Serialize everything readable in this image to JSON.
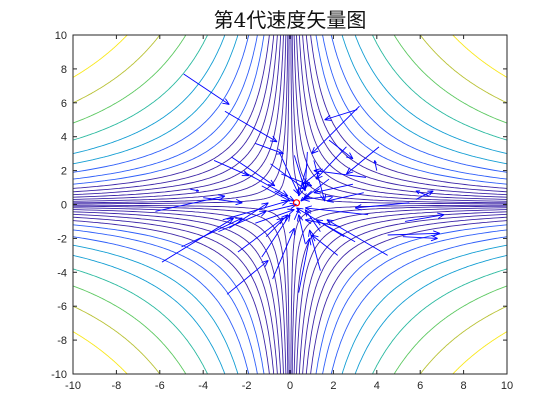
{
  "chart_data": {
    "type": "quiver",
    "title": "第4代速度矢量图",
    "xlim": [
      -10,
      10
    ],
    "ylim": [
      -10,
      10
    ],
    "xticks": [
      -10,
      -8,
      -6,
      -4,
      -2,
      0,
      2,
      4,
      6,
      8,
      10
    ],
    "yticks": [
      -10,
      -8,
      -6,
      -4,
      -2,
      0,
      2,
      4,
      6,
      8,
      10
    ],
    "grid": false,
    "background_contours": {
      "function": "x*y",
      "levels": [
        -75,
        -60,
        -48,
        -38,
        -30,
        -24,
        -19,
        -15,
        -12,
        -9.5,
        -7.5,
        -5.8,
        -4.3,
        -3,
        -1.9,
        -1,
        -0.4,
        0.4,
        1,
        1.9,
        3,
        4.3,
        5.8,
        7.5,
        9.5,
        12,
        15,
        19,
        24,
        30,
        38,
        48,
        60,
        75
      ],
      "colormap": [
        "#3d26a8",
        "#2f5ff9",
        "#139ed3",
        "#2cbaa0",
        "#5ec962",
        "#b9c236",
        "#f0b429",
        "#f9e81e"
      ]
    },
    "best_point": {
      "x": 0.3,
      "y": 0.1,
      "color": "#ff0000"
    },
    "arrow_color": "#0000ff",
    "vectors": [
      {
        "x": -4.9,
        "y": 7.7,
        "u": 2.1,
        "v": -1.8
      },
      {
        "x": -3.0,
        "y": 5.5,
        "u": 2.4,
        "v": -1.8
      },
      {
        "x": 3.2,
        "y": 5.8,
        "u": -2.2,
        "v": -2.8
      },
      {
        "x": 3.1,
        "y": 5.6,
        "u": -1.5,
        "v": -0.6
      },
      {
        "x": 1.8,
        "y": 3.8,
        "u": 1.1,
        "v": -1.1
      },
      {
        "x": -1.6,
        "y": 3.6,
        "u": 1.3,
        "v": -0.6
      },
      {
        "x": -2.7,
        "y": 2.8,
        "u": 2.0,
        "v": -1.7
      },
      {
        "x": -3.5,
        "y": 2.6,
        "u": 1.6,
        "v": -0.9
      },
      {
        "x": 4.1,
        "y": 3.4,
        "u": -1.5,
        "v": -1.6
      },
      {
        "x": 2.6,
        "y": 3.4,
        "u": -1.4,
        "v": -1.9
      },
      {
        "x": 0.2,
        "y": 2.9,
        "u": 0.5,
        "v": -2.1
      },
      {
        "x": -0.9,
        "y": 2.4,
        "u": 1.6,
        "v": -1.5
      },
      {
        "x": -0.4,
        "y": 1.8,
        "u": 1.4,
        "v": -0.7
      },
      {
        "x": -2.1,
        "y": 1.9,
        "u": 2.0,
        "v": -1.4
      },
      {
        "x": -1.3,
        "y": 1.1,
        "u": 1.3,
        "v": -0.9
      },
      {
        "x": 3.5,
        "y": 1.6,
        "u": -2.4,
        "v": 0.4
      },
      {
        "x": 2.9,
        "y": 1.2,
        "u": -1.8,
        "v": -0.5
      },
      {
        "x": 1.8,
        "y": 1.5,
        "u": -1.2,
        "v": -1.2
      },
      {
        "x": 1.5,
        "y": 2.1,
        "u": -0.9,
        "v": -0.9
      },
      {
        "x": 0.8,
        "y": 2.4,
        "u": -0.4,
        "v": -1.9
      },
      {
        "x": -5.9,
        "y": -3.4,
        "u": 3.3,
        "v": 2.6
      },
      {
        "x": -5.0,
        "y": -2.5,
        "u": 2.8,
        "v": 1.7
      },
      {
        "x": -6.2,
        "y": -0.4,
        "u": 3.2,
        "v": 0.9
      },
      {
        "x": -3.1,
        "y": -0.9,
        "u": 3.0,
        "v": 1.1
      },
      {
        "x": -1.6,
        "y": -1.1,
        "u": 1.8,
        "v": 0.8
      },
      {
        "x": -1.0,
        "y": -0.4,
        "u": 1.3,
        "v": 0.4
      },
      {
        "x": -4.0,
        "y": 0.4,
        "u": 1.8,
        "v": -0.3
      },
      {
        "x": -3.3,
        "y": -1.6,
        "u": 2.2,
        "v": 1.2
      },
      {
        "x": -2.4,
        "y": -2.8,
        "u": 2.1,
        "v": 2.0
      },
      {
        "x": -1.1,
        "y": -1.9,
        "u": 1.0,
        "v": 1.3
      },
      {
        "x": -2.9,
        "y": -5.3,
        "u": 1.9,
        "v": 2.0
      },
      {
        "x": -0.8,
        "y": -4.4,
        "u": 1.0,
        "v": 3.0
      },
      {
        "x": 1.4,
        "y": -3.9,
        "u": -0.5,
        "v": 2.4
      },
      {
        "x": 2.2,
        "y": -3.0,
        "u": -1.2,
        "v": 1.2
      },
      {
        "x": 3.0,
        "y": -2.2,
        "u": -1.8,
        "v": 1.3
      },
      {
        "x": 4.5,
        "y": -3.0,
        "u": -2.8,
        "v": 2.1
      },
      {
        "x": 2.3,
        "y": -1.3,
        "u": -1.6,
        "v": 0.4
      },
      {
        "x": 1.4,
        "y": -1.6,
        "u": -0.7,
        "v": 1.3
      },
      {
        "x": 0.7,
        "y": -2.3,
        "u": -0.3,
        "v": 1.7
      },
      {
        "x": 0.2,
        "y": -0.9,
        "u": 0.2,
        "v": 0.6
      },
      {
        "x": 5.2,
        "y": -1.9,
        "u": 1.6,
        "v": -0.1
      },
      {
        "x": 4.5,
        "y": -1.8,
        "u": 2.4,
        "v": 0.1
      },
      {
        "x": 5.3,
        "y": -1.0,
        "u": 1.8,
        "v": 0.4
      },
      {
        "x": 5.8,
        "y": 0.3,
        "u": 0.8,
        "v": 0.5
      },
      {
        "x": 6.4,
        "y": 0.5,
        "u": -0.6,
        "v": 0.3
      },
      {
        "x": 5.5,
        "y": 0.1,
        "u": -2.5,
        "v": -0.3
      },
      {
        "x": 3.4,
        "y": 0.7,
        "u": -1.7,
        "v": -0.5
      },
      {
        "x": 2.0,
        "y": 0.5,
        "u": -1.4,
        "v": -0.2
      },
      {
        "x": 1.0,
        "y": 0.8,
        "u": -0.5,
        "v": -0.6
      },
      {
        "x": -0.7,
        "y": 0.8,
        "u": 0.9,
        "v": -0.6
      },
      {
        "x": 0.8,
        "y": 3.1,
        "u": -0.1,
        "v": -2.2
      },
      {
        "x": 4.0,
        "y": 2.0,
        "u": -0.1,
        "v": 0.6
      },
      {
        "x": -4.6,
        "y": 0.9,
        "u": 0.4,
        "v": -0.1
      },
      {
        "x": -2.8,
        "y": -1.4,
        "u": 1.8,
        "v": 1.5
      },
      {
        "x": 0.4,
        "y": -5.2,
        "u": 0.5,
        "v": 3.2
      },
      {
        "x": -1.3,
        "y": -3.1,
        "u": 1.3,
        "v": 2.5
      },
      {
        "x": 3.6,
        "y": -0.6,
        "u": -2.9,
        "v": 0.4
      },
      {
        "x": 1.1,
        "y": 2.6,
        "u": 0.5,
        "v": -2.4
      },
      {
        "x": -0.5,
        "y": 3.1,
        "u": 0.9,
        "v": -2.5
      },
      {
        "x": 2.5,
        "y": -1.9,
        "u": -2.2,
        "v": 1.7
      }
    ]
  }
}
